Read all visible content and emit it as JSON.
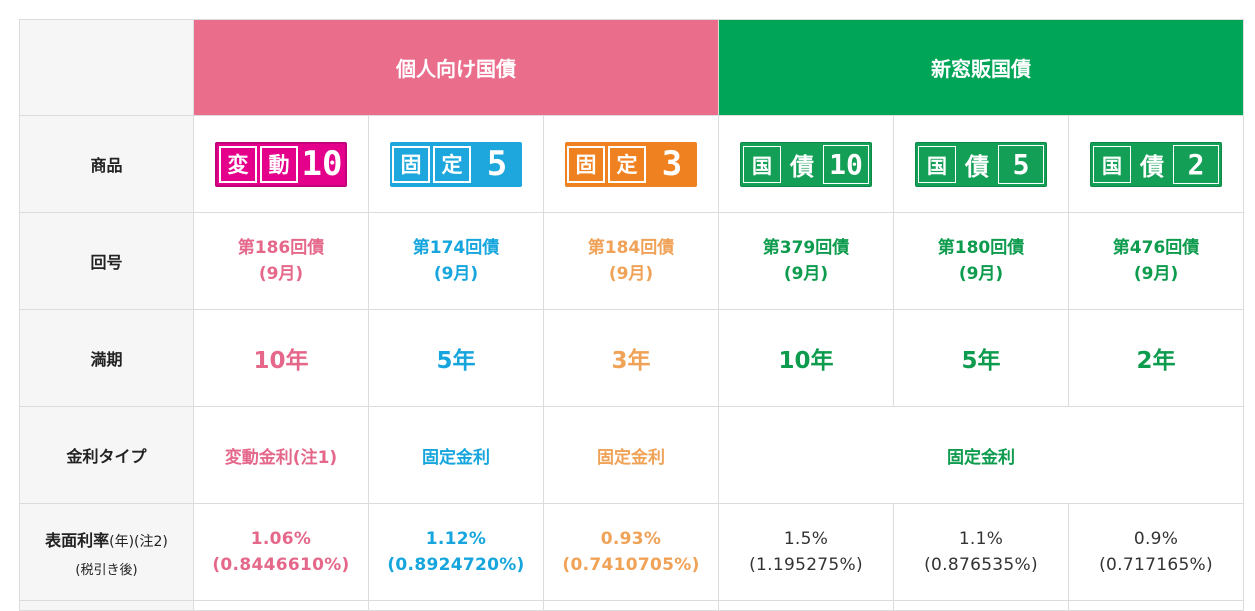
{
  "groups": {
    "individual": "個人向け国債",
    "new_window": "新窓販国債"
  },
  "row_labels": {
    "product": "商品",
    "issue": "回号",
    "maturity": "満期",
    "rate_type": "金利タイプ",
    "coupon_main": "表面利率",
    "coupon_sub": "(年)(注2)",
    "coupon_note": "(税引き後)"
  },
  "products": [
    {
      "logo_k1": "変",
      "logo_k2": "動",
      "logo_num": "10",
      "issue": "第186回債",
      "month": "(9月)",
      "term": "10年",
      "rate_type": "変動金利(注1)",
      "rate": "1.06%",
      "after_tax": "(0.8446610%)",
      "color": "#e5688a"
    },
    {
      "logo_k1": "固",
      "logo_k2": "定",
      "logo_num": "5",
      "issue": "第174回債",
      "month": "(9月)",
      "term": "5年",
      "rate_type": "固定金利",
      "rate": "1.12%",
      "after_tax": "(0.8924720%)",
      "color": "#16a6dd"
    },
    {
      "logo_k1": "固",
      "logo_k2": "定",
      "logo_num": "3",
      "issue": "第184回債",
      "month": "(9月)",
      "term": "3年",
      "rate_type": "固定金利",
      "rate": "0.93%",
      "after_tax": "(0.7410705%)",
      "color": "#f0a257"
    },
    {
      "logo_k1": "国",
      "logo_k2": "債",
      "logo_num": "10",
      "issue": "第379回債",
      "month": "(9月)",
      "term": "10年",
      "rate": "1.5%",
      "after_tax": "(1.195275%)",
      "color": "#0d9b4d"
    },
    {
      "logo_k1": "国",
      "logo_k2": "債",
      "logo_num": "5",
      "issue": "第180回債",
      "month": "(9月)",
      "term": "5年",
      "rate": "1.1%",
      "after_tax": "(0.876535%)",
      "color": "#0d9b4d"
    },
    {
      "logo_k1": "国",
      "logo_k2": "債",
      "logo_num": "2",
      "issue": "第476回債",
      "month": "(9月)",
      "term": "2年",
      "rate": "0.9%",
      "after_tax": "(0.717165%)",
      "color": "#0d9b4d"
    }
  ],
  "new_window_rate_type": "固定金利",
  "colors": {
    "individual_header": "#ea6d8c",
    "new_window_header": "#00a558",
    "label_bg": "#f6f6f6"
  }
}
